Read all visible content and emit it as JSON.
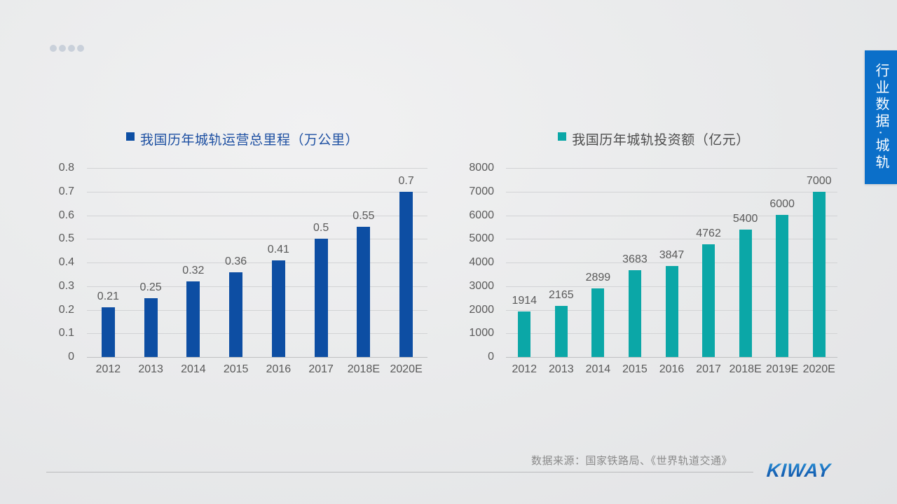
{
  "decor": {
    "top_dots_count": 4,
    "dot_color": "#c9d0da"
  },
  "side_tab": {
    "label": "行业数据·城轨",
    "bg_color": "#0b6fc9",
    "text_color": "#ffffff"
  },
  "footer": {
    "source": "数据来源：国家铁路局、《世界轨道交通》",
    "logo_text": "KIWAY",
    "logo_color": "#1a6ec0"
  },
  "chart_data": [
    {
      "type": "bar",
      "title": "我国历年城轨运营总里程（万公里）",
      "title_color": "#1e50a2",
      "bar_color": "#0d4ea3",
      "categories": [
        "2012",
        "2013",
        "2014",
        "2015",
        "2016",
        "2017",
        "2018E",
        "2020E"
      ],
      "values": [
        0.21,
        0.25,
        0.32,
        0.36,
        0.41,
        0.5,
        0.55,
        0.7
      ],
      "value_labels": [
        "0.21",
        "0.25",
        "0.32",
        "0.36",
        "0.41",
        "0.5",
        "0.55",
        "0.7"
      ],
      "ylim": [
        0,
        0.8
      ],
      "yticks": [
        "0",
        "0.1",
        "0.2",
        "0.3",
        "0.4",
        "0.5",
        "0.6",
        "0.7",
        "0.8"
      ],
      "grid": true,
      "legend_position": "top",
      "xlabel": "",
      "ylabel": ""
    },
    {
      "type": "bar",
      "title": "我国历年城轨投资额（亿元）",
      "title_color": "#4d4d4d",
      "bar_color": "#0ba7a7",
      "categories": [
        "2012",
        "2013",
        "2014",
        "2015",
        "2016",
        "2017",
        "2018E",
        "2019E",
        "2020E"
      ],
      "values": [
        1914,
        2165,
        2899,
        3683,
        3847,
        4762,
        5400,
        6000,
        7000
      ],
      "value_labels": [
        "1914",
        "2165",
        "2899",
        "3683",
        "3847",
        "4762",
        "5400",
        "6000",
        "7000"
      ],
      "ylim": [
        0,
        8000
      ],
      "yticks": [
        "0",
        "1000",
        "2000",
        "3000",
        "4000",
        "5000",
        "6000",
        "7000",
        "8000"
      ],
      "grid": true,
      "legend_position": "top",
      "xlabel": "",
      "ylabel": ""
    }
  ]
}
